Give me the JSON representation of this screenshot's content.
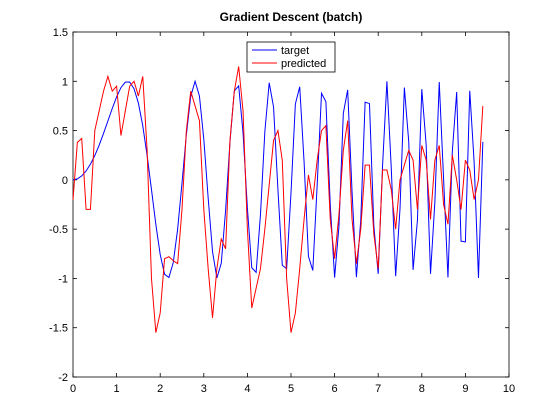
{
  "chart_data": {
    "type": "line",
    "title": "Gradient Descent (batch)",
    "x": [
      0,
      0.1,
      0.2,
      0.3,
      0.4,
      0.5,
      0.6,
      0.7,
      0.8,
      0.9,
      1,
      1.1,
      1.2,
      1.3,
      1.4,
      1.5,
      1.6,
      1.7,
      1.8,
      1.9,
      2,
      2.1,
      2.2,
      2.3,
      2.4,
      2.5,
      2.6,
      2.7,
      2.8,
      2.9,
      3,
      3.1,
      3.2,
      3.3,
      3.4,
      3.5,
      3.6,
      3.7,
      3.8,
      3.9,
      4,
      4.1,
      4.2,
      4.3,
      4.4,
      4.5,
      4.6,
      4.7,
      4.8,
      4.9,
      5,
      5.1,
      5.2,
      5.3,
      5.4,
      5.5,
      5.6,
      5.7,
      5.8,
      5.9,
      6,
      6.1,
      6.2,
      6.3,
      6.4,
      6.5,
      6.6,
      6.7,
      6.8,
      6.9,
      7,
      7.1,
      7.2,
      7.3,
      7.4,
      7.5,
      7.6,
      7.7,
      7.8,
      7.9,
      8,
      8.1,
      8.2,
      8.3,
      8.4,
      8.5,
      8.6,
      8.7,
      8.8,
      8.9,
      9,
      9.1,
      9.2,
      9.3,
      9.4
    ],
    "series": [
      {
        "name": "target",
        "color": "#0000ff",
        "values": [
          0,
          0.01,
          0.04,
          0.09,
          0.159,
          0.247,
          0.352,
          0.471,
          0.597,
          0.724,
          0.841,
          0.936,
          0.991,
          0.993,
          0.925,
          0.778,
          0.549,
          0.248,
          -0.098,
          -0.452,
          -0.757,
          -0.957,
          -0.991,
          -0.838,
          -0.5,
          -0.033,
          0.459,
          0.846,
          1,
          0.85,
          0.412,
          -0.184,
          -0.728,
          -0.995,
          -0.848,
          -0.311,
          0.384,
          0.902,
          0.954,
          0.477,
          -0.288,
          -0.892,
          -0.938,
          -0.351,
          0.488,
          0.985,
          0.739,
          -0.098,
          -0.866,
          -0.902,
          -0.132,
          0.769,
          0.944,
          0.183,
          -0.776,
          -0.919,
          -0.056,
          0.879,
          0.794,
          -0.249,
          -0.991,
          -0.47,
          0.675,
          0.913,
          -0.119,
          -0.987,
          -0.41,
          0.788,
          0.774,
          -0.466,
          -0.954,
          0.144,
          1,
          0.116,
          -0.977,
          -0.294,
          0.936,
          0.39,
          -0.913,
          -0.41,
          0.92,
          0.355,
          -0.954,
          -0.223,
          0.992,
          0.007,
          -0.991,
          0.288,
          0.891,
          -0.622,
          -0.63,
          0.904,
          0.181,
          -0.995,
          0.385
        ]
      },
      {
        "name": "predicted",
        "color": "#ff0000",
        "values": [
          -0.2,
          0.38,
          0.42,
          -0.3,
          -0.3,
          0.5,
          0.7,
          0.9,
          1.05,
          0.9,
          0.95,
          0.45,
          0.7,
          0.95,
          1,
          0.85,
          1.05,
          0.3,
          -1,
          -1.55,
          -1.35,
          -0.8,
          -0.78,
          -0.82,
          -0.85,
          -0.3,
          0.5,
          0.9,
          0.75,
          0.6,
          -0.3,
          -0.9,
          -1.4,
          -0.9,
          -0.6,
          -0.7,
          0.4,
          0.9,
          1.15,
          0.7,
          -0.5,
          -1.3,
          -1.1,
          -0.9,
          -0.5,
          -0.05,
          0.4,
          0.5,
          0.2,
          -1,
          -1.55,
          -1.35,
          -0.9,
          -0.4,
          0.05,
          -0.2,
          0.2,
          0.5,
          0.55,
          -0.4,
          -0.8,
          -0.35,
          0.3,
          0.6,
          -0.4,
          -0.85,
          -0.5,
          0.15,
          0.15,
          -0.55,
          -0.9,
          0.1,
          0.1,
          -0.1,
          -0.5,
          0,
          0.15,
          0.3,
          0.2,
          -0.3,
          0.35,
          0.2,
          -0.4,
          0.2,
          0.35,
          -0.25,
          -0.45,
          0.25,
          0,
          -0.3,
          0.2,
          0.1,
          -0.2,
          0,
          0.75
        ]
      }
    ],
    "xlim": [
      0,
      10
    ],
    "xticks": [
      0,
      1,
      2,
      3,
      4,
      5,
      6,
      7,
      8,
      9,
      10
    ],
    "ylim": [
      -2,
      1.5
    ],
    "yticks": [
      -2,
      -1.5,
      -1,
      -0.5,
      0,
      0.5,
      1,
      1.5
    ],
    "legend": "top"
  }
}
